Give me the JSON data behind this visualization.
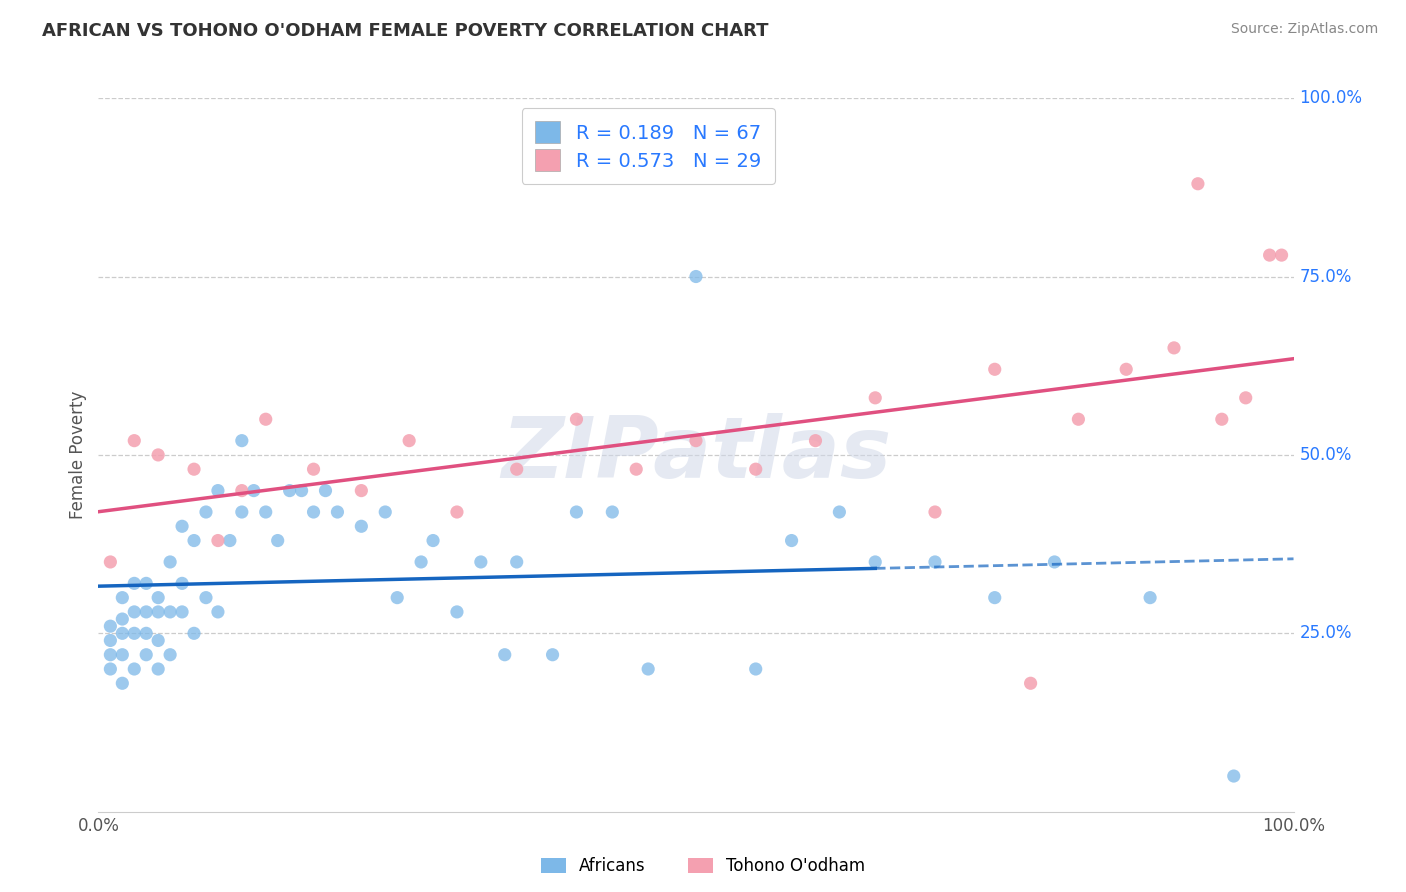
{
  "title": "AFRICAN VS TOHONO O'ODHAM FEMALE POVERTY CORRELATION CHART",
  "source": "Source: ZipAtlas.com",
  "ylabel": "Female Poverty",
  "legend_africans": "Africans",
  "legend_tohono": "Tohono O'odham",
  "r_africans": 0.189,
  "n_africans": 67,
  "r_tohono": 0.573,
  "n_tohono": 29,
  "africans_color": "#7db8e8",
  "tohono_color": "#f4a0b0",
  "africans_line_color": "#1565C0",
  "tohono_line_color": "#e05080",
  "blue_label_color": "#2979FF",
  "watermark_text": "ZIPatlas",
  "title_color": "#333333",
  "source_color": "#888888",
  "grid_color": "#cccccc",
  "ytick_label_color": "#2979FF",
  "africans_x": [
    0.01,
    0.01,
    0.01,
    0.01,
    0.02,
    0.02,
    0.02,
    0.02,
    0.02,
    0.03,
    0.03,
    0.03,
    0.03,
    0.04,
    0.04,
    0.04,
    0.04,
    0.05,
    0.05,
    0.05,
    0.05,
    0.06,
    0.06,
    0.06,
    0.07,
    0.07,
    0.07,
    0.08,
    0.08,
    0.09,
    0.09,
    0.1,
    0.1,
    0.11,
    0.12,
    0.12,
    0.13,
    0.14,
    0.15,
    0.16,
    0.17,
    0.18,
    0.19,
    0.2,
    0.22,
    0.24,
    0.25,
    0.27,
    0.28,
    0.3,
    0.32,
    0.34,
    0.35,
    0.38,
    0.4,
    0.43,
    0.46,
    0.5,
    0.55,
    0.58,
    0.62,
    0.65,
    0.7,
    0.75,
    0.8,
    0.88,
    0.95
  ],
  "africans_y": [
    0.2,
    0.22,
    0.24,
    0.26,
    0.18,
    0.22,
    0.25,
    0.27,
    0.3,
    0.2,
    0.25,
    0.28,
    0.32,
    0.22,
    0.25,
    0.28,
    0.32,
    0.2,
    0.24,
    0.28,
    0.3,
    0.22,
    0.28,
    0.35,
    0.28,
    0.32,
    0.4,
    0.25,
    0.38,
    0.3,
    0.42,
    0.28,
    0.45,
    0.38,
    0.42,
    0.52,
    0.45,
    0.42,
    0.38,
    0.45,
    0.45,
    0.42,
    0.45,
    0.42,
    0.4,
    0.42,
    0.3,
    0.35,
    0.38,
    0.28,
    0.35,
    0.22,
    0.35,
    0.22,
    0.42,
    0.42,
    0.2,
    0.75,
    0.2,
    0.38,
    0.42,
    0.35,
    0.35,
    0.3,
    0.35,
    0.3,
    0.05
  ],
  "tohono_x": [
    0.01,
    0.03,
    0.05,
    0.08,
    0.1,
    0.12,
    0.14,
    0.18,
    0.22,
    0.26,
    0.3,
    0.35,
    0.4,
    0.45,
    0.5,
    0.55,
    0.6,
    0.65,
    0.7,
    0.75,
    0.78,
    0.82,
    0.86,
    0.9,
    0.92,
    0.94,
    0.96,
    0.98,
    0.99
  ],
  "tohono_y": [
    0.35,
    0.52,
    0.5,
    0.48,
    0.38,
    0.45,
    0.55,
    0.48,
    0.45,
    0.52,
    0.42,
    0.48,
    0.55,
    0.48,
    0.52,
    0.48,
    0.52,
    0.58,
    0.42,
    0.62,
    0.18,
    0.55,
    0.62,
    0.65,
    0.88,
    0.55,
    0.58,
    0.78,
    0.78
  ],
  "xlim": [
    0.0,
    1.0
  ],
  "ylim": [
    0.0,
    1.0
  ],
  "af_line_solid_end": 0.65,
  "ytick_positions": [
    0.0,
    0.25,
    0.5,
    0.75,
    1.0
  ],
  "ytick_labels": [
    "",
    "25.0%",
    "50.0%",
    "75.0%",
    "100.0%"
  ]
}
